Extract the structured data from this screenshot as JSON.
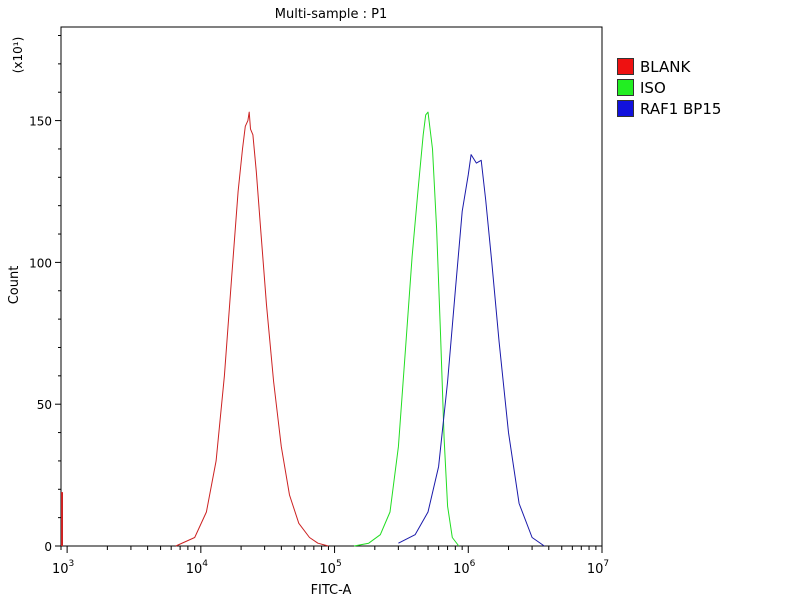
{
  "chart_data": {
    "type": "line",
    "title": "Multi-sample : P1",
    "xlabel": "FITC-A",
    "ylabel": "Count",
    "y_multiplier": "(x10¹)",
    "x_scale": "log",
    "xlim": [
      900,
      10000000
    ],
    "ylim": [
      0,
      183
    ],
    "x_ticks": [
      {
        "base": "10",
        "exp": "3",
        "value": 1000
      },
      {
        "base": "10",
        "exp": "4",
        "value": 10000
      },
      {
        "base": "10",
        "exp": "5",
        "value": 100000
      },
      {
        "base": "10",
        "exp": "6",
        "value": 1000000
      },
      {
        "base": "10",
        "exp": "7",
        "value": 10000000
      }
    ],
    "y_ticks": [
      "0",
      "50",
      "100",
      "150"
    ],
    "y_tick_values": [
      0,
      50,
      100,
      150
    ],
    "legend_position": "top-right",
    "grid": false,
    "series": [
      {
        "name": "BLANK",
        "color": "#cc2222",
        "x": [
          6500,
          9000,
          11000,
          13000,
          15000,
          17000,
          19000,
          20500,
          21500,
          22500,
          23000,
          23500,
          24500,
          26000,
          28000,
          31000,
          35000,
          40000,
          46000,
          54000,
          65000,
          75000,
          90000
        ],
        "y": [
          0,
          3,
          12,
          30,
          60,
          95,
          125,
          140,
          148,
          150,
          153,
          147,
          145,
          132,
          112,
          85,
          58,
          35,
          18,
          8,
          3,
          1,
          0
        ]
      },
      {
        "name": "ISO",
        "color": "#22dd22",
        "x": [
          140000,
          180000,
          220000,
          260000,
          300000,
          340000,
          380000,
          420000,
          460000,
          480000,
          500000,
          540000,
          580000,
          620000,
          660000,
          700000,
          760000,
          850000
        ],
        "y": [
          0,
          1,
          4,
          12,
          35,
          70,
          102,
          125,
          145,
          152,
          153,
          140,
          112,
          75,
          38,
          14,
          3,
          0
        ]
      },
      {
        "name": "RAF1 BP15",
        "color": "#1a1aaa",
        "x": [
          300000,
          400000,
          500000,
          600000,
          700000,
          800000,
          900000,
          1000000,
          1050000,
          1150000,
          1250000,
          1350000,
          1500000,
          1700000,
          2000000,
          2400000,
          3000000,
          3700000
        ],
        "y": [
          1,
          4,
          12,
          28,
          58,
          90,
          118,
          131,
          138,
          135,
          136,
          122,
          100,
          72,
          40,
          15,
          3,
          0
        ]
      }
    ]
  }
}
